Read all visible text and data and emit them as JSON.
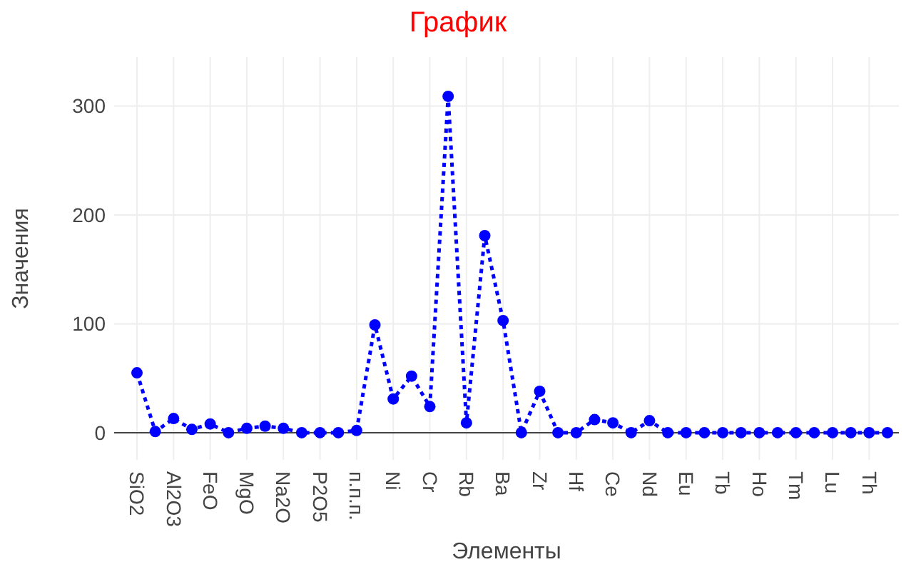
{
  "chart_data": {
    "type": "line",
    "title": "График",
    "xlabel": "Элементы",
    "ylabel": "Значения",
    "categories": [
      "SiO2",
      null,
      "Al2O3",
      null,
      "FeO",
      null,
      "MgO",
      null,
      "Na2O",
      null,
      "P2O5",
      null,
      "п.п.п.",
      null,
      "Ni",
      null,
      "Cr",
      null,
      "Rb",
      null,
      "Ba",
      null,
      "Zr",
      null,
      "Hf",
      null,
      "Ce",
      null,
      "Nd",
      null,
      "Eu",
      null,
      "Tb",
      null,
      "Ho",
      null,
      "Tm",
      null,
      "Lu",
      null,
      "Th",
      null
    ],
    "series": [
      {
        "color": "#0000ff",
        "values": [
          55,
          1,
          13,
          3,
          8,
          0,
          4,
          6,
          4,
          0,
          0,
          0,
          2,
          99,
          31,
          52,
          24,
          309,
          9,
          181,
          103,
          0,
          38,
          0,
          0,
          12,
          9,
          0,
          11,
          0,
          0,
          0,
          0,
          0,
          0,
          0,
          0,
          0,
          0,
          0,
          0,
          0
        ]
      }
    ],
    "ylim": [
      -25,
      345
    ],
    "yticks": [
      0,
      100,
      200,
      300
    ],
    "grid": true,
    "marker": "circle",
    "line_style": "dotted"
  }
}
